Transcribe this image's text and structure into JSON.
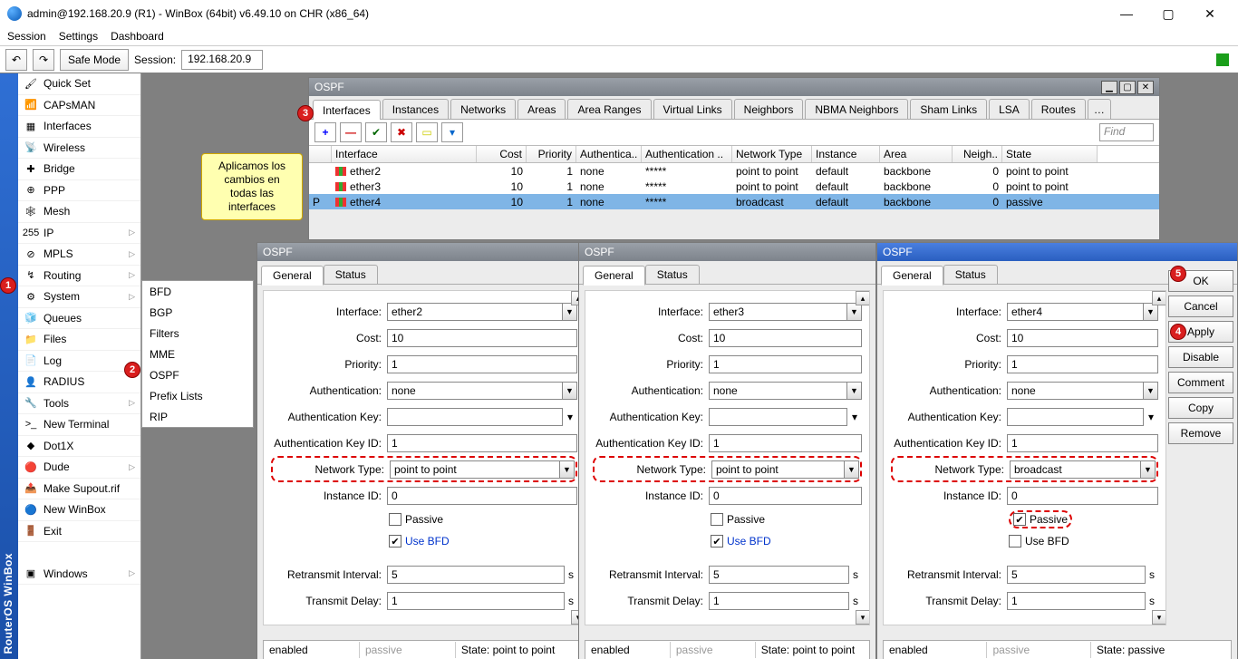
{
  "title": "admin@192.168.20.9 (R1) - WinBox (64bit) v6.49.10 on CHR (x86_64)",
  "menu": {
    "session": "Session",
    "settings": "Settings",
    "dashboard": "Dashboard"
  },
  "tb": {
    "undo": "↶",
    "redo": "↷",
    "safe": "Safe Mode",
    "sess_lbl": "Session:",
    "sess_val": "192.168.20.9"
  },
  "sidebar": [
    {
      "icon": "🖌",
      "label": "Quick Set"
    },
    {
      "icon": "📶",
      "label": "CAPsMAN"
    },
    {
      "icon": "▦",
      "label": "Interfaces"
    },
    {
      "icon": "📡",
      "label": "Wireless"
    },
    {
      "icon": "✚",
      "label": "Bridge"
    },
    {
      "icon": "⊕",
      "label": "PPP"
    },
    {
      "icon": "🕸",
      "label": "Mesh"
    },
    {
      "icon": "255",
      "label": "IP",
      "arrow": true
    },
    {
      "icon": "⊘",
      "label": "MPLS",
      "arrow": true
    },
    {
      "icon": "↯",
      "label": "Routing",
      "arrow": true
    },
    {
      "icon": "⚙",
      "label": "System",
      "arrow": true
    },
    {
      "icon": "🧊",
      "label": "Queues"
    },
    {
      "icon": "📁",
      "label": "Files"
    },
    {
      "icon": "📄",
      "label": "Log"
    },
    {
      "icon": "👤",
      "label": "RADIUS"
    },
    {
      "icon": "🔧",
      "label": "Tools",
      "arrow": true
    },
    {
      "icon": ">_",
      "label": "New Terminal"
    },
    {
      "icon": "◆",
      "label": "Dot1X"
    },
    {
      "icon": "🔴",
      "label": "Dude",
      "arrow": true
    },
    {
      "icon": "📤",
      "label": "Make Supout.rif"
    },
    {
      "icon": "🔵",
      "label": "New WinBox"
    },
    {
      "icon": "🚪",
      "label": "Exit"
    },
    {
      "icon": "",
      "label": ""
    },
    {
      "icon": "▣",
      "label": "Windows",
      "arrow": true
    }
  ],
  "submenu": [
    "BFD",
    "BGP",
    "Filters",
    "MME",
    "OSPF",
    "Prefix Lists",
    "RIP"
  ],
  "note": "Aplicamos los cambios en todas las interfaces",
  "ospf": {
    "title": "OSPF",
    "tabs": [
      "Interfaces",
      "Instances",
      "Networks",
      "Areas",
      "Area Ranges",
      "Virtual Links",
      "Neighbors",
      "NBMA Neighbors",
      "Sham Links",
      "LSA",
      "Routes"
    ],
    "find": "Find",
    "cols": [
      "",
      "Interface",
      "Cost",
      "Priority",
      "Authentica..",
      "Authentication ..",
      "Network Type",
      "Instance",
      "Area",
      "Neigh..",
      "State"
    ],
    "rows": [
      {
        "p": "",
        "iface": "ether2",
        "cost": "10",
        "prio": "1",
        "auth": "none",
        "ak": "*****",
        "nt": "point to point",
        "inst": "default",
        "area": "backbone",
        "neigh": "0",
        "state": "point to point"
      },
      {
        "p": "",
        "iface": "ether3",
        "cost": "10",
        "prio": "1",
        "auth": "none",
        "ak": "*****",
        "nt": "point to point",
        "inst": "default",
        "area": "backbone",
        "neigh": "0",
        "state": "point to point"
      },
      {
        "p": "P",
        "iface": "ether4",
        "cost": "10",
        "prio": "1",
        "auth": "none",
        "ak": "*****",
        "nt": "broadcast",
        "inst": "default",
        "area": "backbone",
        "neigh": "0",
        "state": "passive",
        "sel": true
      }
    ]
  },
  "form": {
    "interface": "Interface:",
    "cost": "Cost:",
    "priority": "Priority:",
    "auth": "Authentication:",
    "authkey": "Authentication Key:",
    "authkeyid": "Authentication Key ID:",
    "ntype": "Network Type:",
    "iid": "Instance ID:",
    "passive": "Passive",
    "usebfd": "Use BFD",
    "retx": "Retransmit Interval:",
    "txd": "Transmit Delay:",
    "sec": "s",
    "general": "General",
    "status": "Status",
    "sb_enabled": "enabled",
    "sb_passive": "passive",
    "sb_state_p2p": "State: point to point",
    "sb_state_pass": "State: passive"
  },
  "btns": {
    "ok": "OK",
    "cancel": "Cancel",
    "apply": "Apply",
    "disable": "Disable",
    "comment": "Comment",
    "copy": "Copy",
    "remove": "Remove"
  },
  "d": [
    {
      "title": "OSPF <ether2>",
      "iface": "ether2",
      "cost": "10",
      "prio": "1",
      "auth": "none",
      "ak": "",
      "akid": "1",
      "nt": "point to point",
      "iid": "0",
      "passive": false,
      "bfd": true,
      "retx": "5",
      "txd": "1",
      "state": "State: point to point"
    },
    {
      "title": "OSPF <ether3>",
      "iface": "ether3",
      "cost": "10",
      "prio": "1",
      "auth": "none",
      "ak": "",
      "akid": "1",
      "nt": "point to point",
      "iid": "0",
      "passive": false,
      "bfd": true,
      "retx": "5",
      "txd": "1",
      "state": "State: point to point"
    },
    {
      "title": "OSPF <ether4>",
      "iface": "ether4",
      "cost": "10",
      "prio": "1",
      "auth": "none",
      "ak": "",
      "akid": "1",
      "nt": "broadcast",
      "iid": "0",
      "passive": true,
      "bfd": false,
      "retx": "5",
      "txd": "1",
      "state": "State: passive"
    }
  ]
}
